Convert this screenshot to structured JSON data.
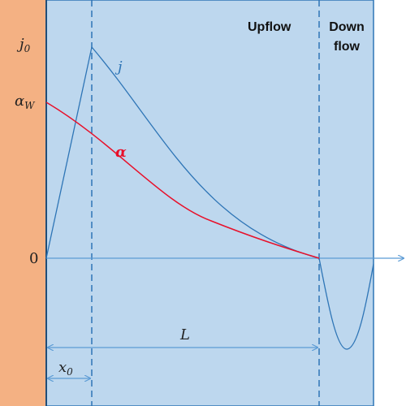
{
  "labels": {
    "j0": {
      "symbol": "j",
      "subscript": "0"
    },
    "alpha_w": {
      "symbol": "α",
      "subscript": "W"
    },
    "zero": "0",
    "j_curve": "j",
    "alpha_curve": "α",
    "upflow": "Upflow",
    "downflow": [
      "Down",
      "flow"
    ],
    "length": "L",
    "x0": {
      "symbol": "x",
      "subscript": "0"
    }
  }
}
